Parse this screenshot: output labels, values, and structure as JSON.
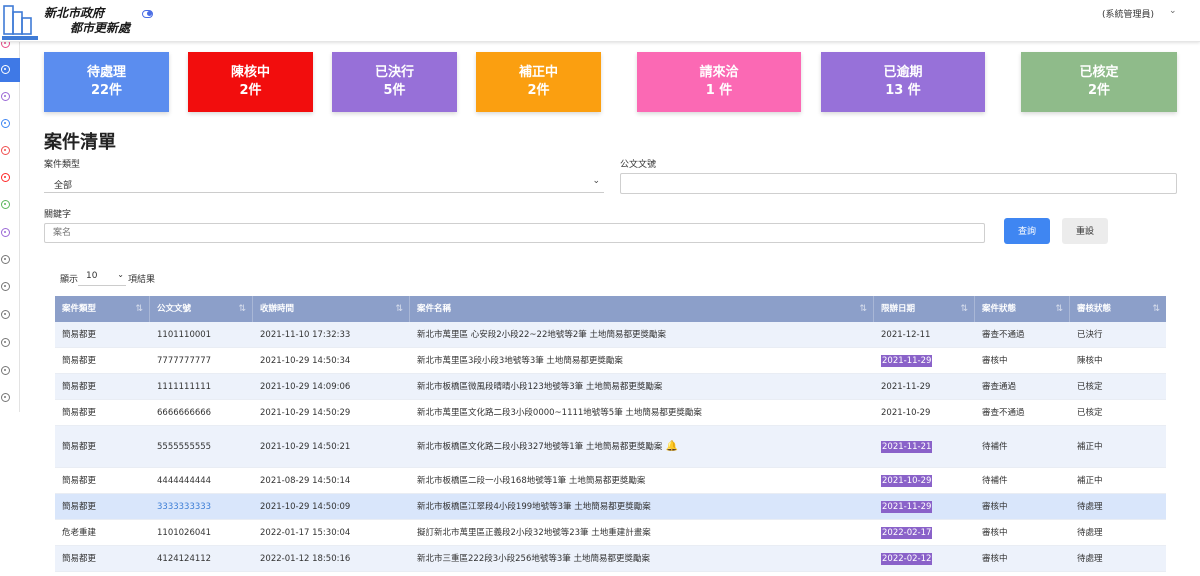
{
  "header": {
    "logo_line1": "新北市政府",
    "logo_line2": "都市更新處",
    "user_label": "(系統管理員)"
  },
  "cards": [
    {
      "label": "待處理",
      "count": "22件",
      "color": "#5b8def"
    },
    {
      "label": "陳核中",
      "count": "2件",
      "color": "#f20d0d"
    },
    {
      "label": "已決行",
      "count": "5件",
      "color": "#9770d8"
    },
    {
      "label": "補正中",
      "count": "2件",
      "color": "#fb9f10"
    },
    {
      "label": "請來洽",
      "count": "1 件",
      "color": "#fb69b4"
    },
    {
      "label": "已逾期",
      "count": "13 件",
      "color": "#9771d9"
    },
    {
      "label": "已核定",
      "count": "2件",
      "color": "#8fbb8a"
    }
  ],
  "page": {
    "title": "案件清單"
  },
  "filters": {
    "case_type_label": "案件類型",
    "case_type_value": "全部",
    "doc_no_label": "公文文號",
    "doc_no_value": "",
    "keyword_label": "關鍵字",
    "keyword_placeholder": "案名",
    "search_button": "查詢",
    "reset_button": "重設"
  },
  "pagination": {
    "show_prefix": "顯示",
    "page_size": "10",
    "show_suffix": "項結果"
  },
  "table": {
    "columns": [
      "案件類型",
      "公文文號",
      "收辦時間",
      "案件名稱",
      "限辦日期",
      "案件狀態",
      "審核狀態"
    ],
    "rows": [
      {
        "type": "簡易都更",
        "doc_no": "1101110001",
        "received": "2021-11-10 17:32:33",
        "name": "新北市萬里區 心安段2小段22~22地號等2筆 土地簡易都更獎勵案",
        "deadline": "2021-12-11",
        "case_status": "審查不通過",
        "review_status": "已決行",
        "deadline_hl": false,
        "bell": false,
        "link": false
      },
      {
        "type": "簡易都更",
        "doc_no": "7777777777",
        "received": "2021-10-29 14:50:34",
        "name": "新北市萬里區3段小段3地號等3筆 土地簡易都更獎勵案",
        "deadline": "2021-11-29",
        "case_status": "審核中",
        "review_status": "陳核中",
        "deadline_hl": true,
        "bell": false,
        "link": false
      },
      {
        "type": "簡易都更",
        "doc_no": "1111111111",
        "received": "2021-10-29 14:09:06",
        "name": "新北市板橋區微風段晴晴小段123地號等3筆 土地簡易都更獎勵案",
        "deadline": "2021-11-29",
        "case_status": "審查通過",
        "review_status": "已核定",
        "deadline_hl": false,
        "bell": false,
        "link": false
      },
      {
        "type": "簡易都更",
        "doc_no": "6666666666",
        "received": "2021-10-29 14:50:29",
        "name": "新北市萬里區文化路二段3小段0000~1111地號等5筆 土地簡易都更獎勵案",
        "deadline": "2021-10-29",
        "case_status": "審查不通過",
        "review_status": "已核定",
        "deadline_hl": false,
        "bell": false,
        "link": false
      },
      {
        "type": "簡易都更",
        "doc_no": "5555555555",
        "received": "2021-10-29 14:50:21",
        "name": "新北市板橋區文化路二段小段327地號等1筆 土地簡易都更獎勵案",
        "deadline": "2021-11-21",
        "case_status": "待補件",
        "review_status": "補正中",
        "deadline_hl": true,
        "bell": true,
        "link": false
      },
      {
        "type": "簡易都更",
        "doc_no": "4444444444",
        "received": "2021-08-29 14:50:14",
        "name": "新北市板橋區二段一小段168地號等1筆 土地簡易都更獎勵案",
        "deadline": "2021-10-29",
        "case_status": "待補件",
        "review_status": "補正中",
        "deadline_hl": true,
        "bell": false,
        "link": false
      },
      {
        "type": "簡易都更",
        "doc_no": "3333333333",
        "received": "2021-10-29 14:50:09",
        "name": "新北市板橋區江翠段4小段199地號等3筆 土地簡易都更獎勵案",
        "deadline": "2021-11-29",
        "case_status": "審核中",
        "review_status": "待處理",
        "deadline_hl": true,
        "bell": false,
        "link": true
      },
      {
        "type": "危老重建",
        "doc_no": "1101026041",
        "received": "2022-01-17 15:30:04",
        "name": "擬訂新北市萬里區正義段2小段32地號等23筆 土地重建計畫案",
        "deadline": "2022-02-17",
        "case_status": "審核中",
        "review_status": "待處理",
        "deadline_hl": true,
        "bell": false,
        "link": false
      },
      {
        "type": "簡易都更",
        "doc_no": "4124124112",
        "received": "2022-01-12 18:50:16",
        "name": "新北市三重區222段3小段256地號等3筆 土地簡易都更獎勵案",
        "deadline": "2022-02-12",
        "case_status": "審核中",
        "review_status": "待處理",
        "deadline_hl": true,
        "bell": false,
        "link": false
      }
    ]
  }
}
